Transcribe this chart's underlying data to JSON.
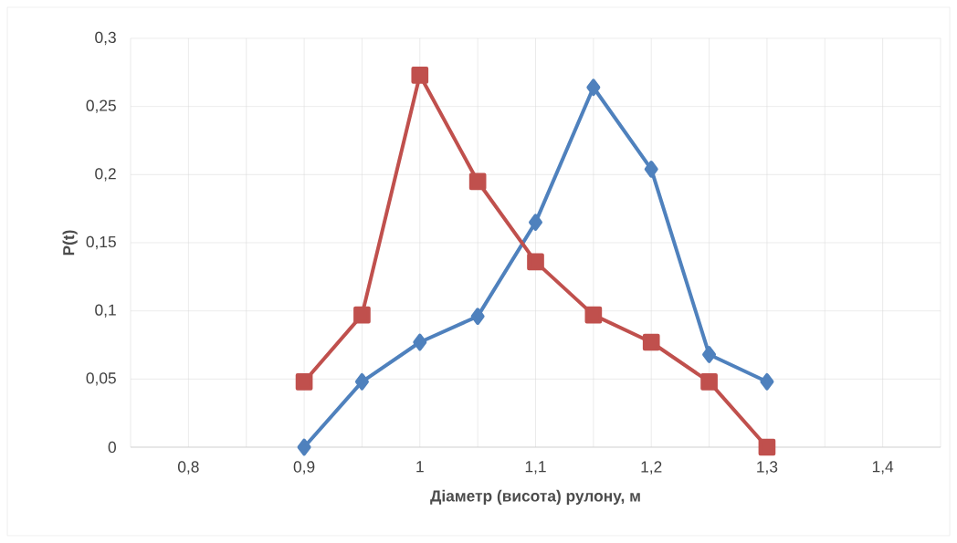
{
  "chart_data": {
    "type": "line",
    "xlabel": "Діаметр (висота) рулону, м",
    "ylabel": "P(t)",
    "x": [
      0.9,
      0.95,
      1.0,
      1.05,
      1.1,
      1.15,
      1.2,
      1.25,
      1.3
    ],
    "series": [
      {
        "color": "#4f81bd",
        "marker": "diamond",
        "values": [
          0,
          0.048,
          0.077,
          0.096,
          0.165,
          0.264,
          0.204,
          0.068,
          0.048
        ]
      },
      {
        "color": "#c0504d",
        "marker": "square",
        "values": [
          0.048,
          0.097,
          0.273,
          0.195,
          0.136,
          0.097,
          0.077,
          0.048,
          0
        ]
      }
    ],
    "xlim": [
      0.75,
      1.45
    ],
    "xticks": [
      {
        "value": 0.75,
        "label": null
      },
      {
        "value": 0.8,
        "label": "0,8"
      },
      {
        "value": 0.85,
        "label": null
      },
      {
        "value": 0.9,
        "label": "0,9"
      },
      {
        "value": 0.95,
        "label": null
      },
      1,
      {
        "value": 1.05,
        "label": null
      },
      {
        "value": 1.1,
        "label": "1,1"
      },
      {
        "value": 1.15,
        "label": null
      },
      {
        "value": 1.2,
        "label": "1,2"
      },
      {
        "value": 1.25,
        "label": null
      },
      {
        "value": 1.3,
        "label": "1,3"
      },
      {
        "value": 1.35,
        "label": null
      },
      {
        "value": 1.4,
        "label": "1,4"
      },
      {
        "value": 1.45,
        "label": null
      }
    ],
    "ylim": [
      0,
      0.3
    ],
    "yticks": [
      0,
      {
        "value": 0.05,
        "label": "0,05"
      },
      {
        "value": 0.1,
        "label": "0,1"
      },
      {
        "value": 0.15,
        "label": "0,15"
      },
      {
        "value": 0.2,
        "label": "0,2"
      },
      {
        "value": 0.25,
        "label": "0,25"
      },
      {
        "value": 0.3,
        "label": "0,3"
      }
    ],
    "grid": true,
    "line_style": "solid"
  }
}
